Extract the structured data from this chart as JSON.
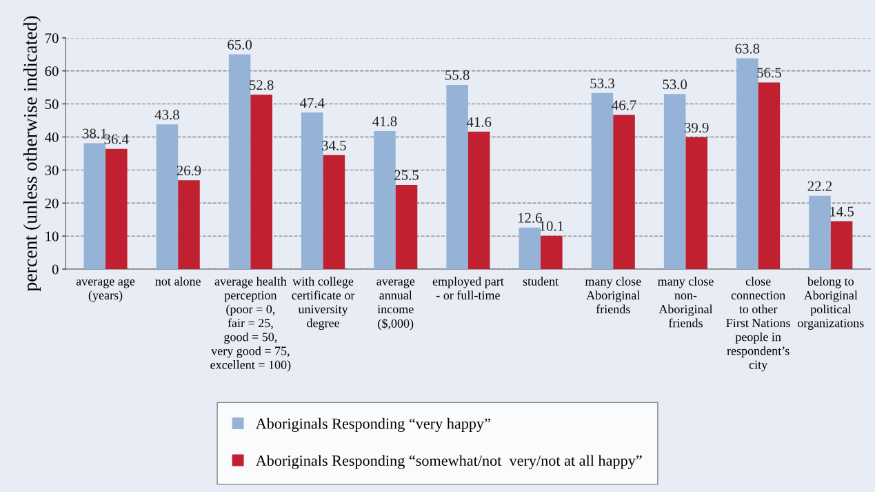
{
  "chart_data": {
    "type": "bar",
    "ylabel": "percent (unless otherwise indicated)",
    "categories": [
      "average age\n(years)",
      "not alone",
      "average health\nperception\n(poor = 0,\nfair = 25,\ngood = 50,\nvery good = 75,\nexcellent = 100)",
      "with college\ncertificate or\nuniversity\ndegree",
      "average\nannual\nincome\n($,000)",
      "employed part\n- or full-time",
      "student",
      "many close\nAboriginal\nfriends",
      "many close\nnon-\nAboriginal\nfriends",
      "close\nconnection\nto other\nFirst Nations\npeople in\nrespondent’s\ncity",
      "belong to\nAboriginal\npolitical\norganizations"
    ],
    "series": [
      {
        "name": "Aboriginals Responding “very happy”",
        "color": "#95b3d7",
        "values": [
          38.1,
          43.8,
          65.0,
          47.4,
          41.8,
          55.8,
          12.6,
          53.3,
          53.0,
          63.8,
          22.2
        ],
        "value_labels": [
          "38.1",
          "43.8",
          "65.0",
          "47.4",
          "41.8",
          "55.8",
          "12.6",
          "53.3",
          "53.0",
          "63.8",
          "22.2"
        ]
      },
      {
        "name": "Aboriginals Responding “somewhat/not  very/not at all happy”",
        "color": "#c0202f",
        "values": [
          36.4,
          26.9,
          52.8,
          34.5,
          25.5,
          41.6,
          10.1,
          46.7,
          39.9,
          56.5,
          14.5
        ],
        "value_labels": [
          "36.4",
          "26.9",
          "52.8",
          "34.5",
          "25.5",
          "41.6",
          "10.1",
          "46.7",
          "39.9",
          "56.5",
          "14.5"
        ]
      }
    ],
    "ylim": [
      0,
      70
    ],
    "yticks": [
      0,
      10,
      20,
      30,
      40,
      50,
      60,
      70
    ],
    "grid": "y",
    "legend": "bottom"
  }
}
